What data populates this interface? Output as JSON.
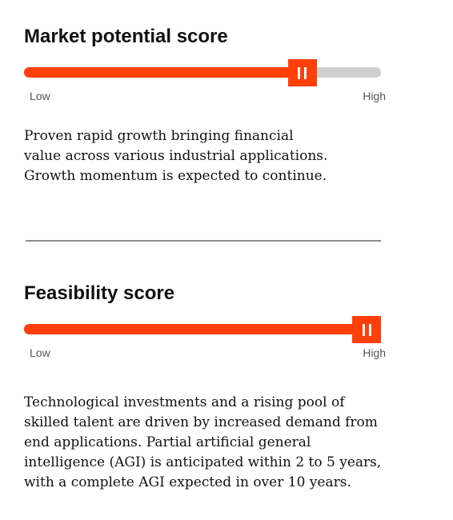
{
  "market": {
    "title": "Market potential score",
    "level": 0.78,
    "low_label": "Low",
    "high_label": "High",
    "lines": [
      "Proven rapid growth bringing financial",
      "value across various industrial applications.",
      "Growth momentum is expected to continue."
    ]
  },
  "feasibility": {
    "title": "Feasibility score",
    "level": 0.96,
    "low_label": "Low",
    "high_label": "High",
    "lines": [
      "Technological investments and a rising pool of",
      "skilled talent are driven by increased demand from",
      "end applications. Partial artificial general",
      "intelligence (AGI) is anticipated within 2 to 5 years,",
      "with a complete AGI expected in over 10 years."
    ]
  },
  "colors": {
    "accent": "#fe3f0a",
    "track": "#cfcfcf",
    "divider": "#8c8c8c"
  }
}
